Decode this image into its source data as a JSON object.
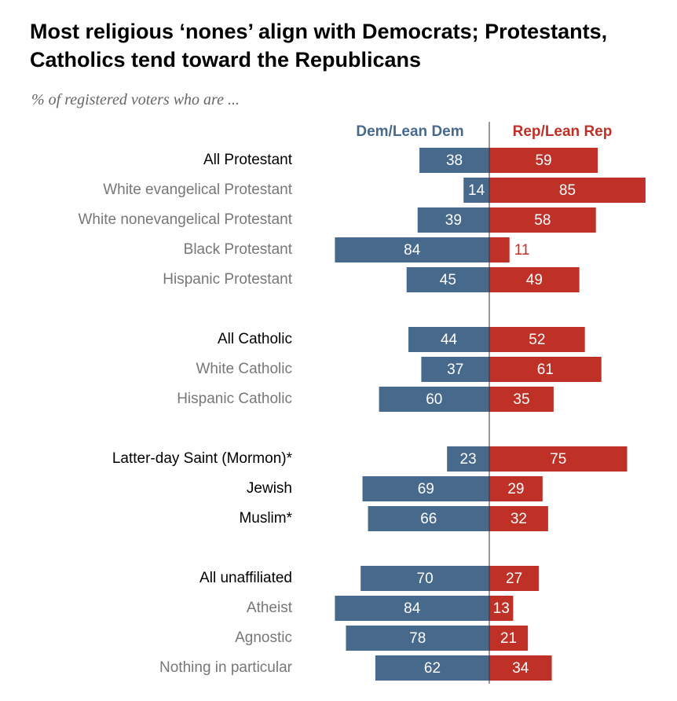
{
  "chart_data": {
    "type": "diverging-bar",
    "title": "Most religious ‘nones’ align with Democrats; Protestants, Catholics tend toward the Republicans",
    "subtitle": "% of registered voters who are ...",
    "categories": [
      "All Protestant",
      "White evangelical Protestant",
      "White nonevangelical Protestant",
      "Black Protestant",
      "Hispanic Protestant",
      "All Catholic",
      "White Catholic",
      "Hispanic Catholic",
      "Latter-day Saint (Mormon)*",
      "Jewish",
      "Muslim*",
      "All unaffiliated",
      "Atheist",
      "Agnostic",
      "Nothing in particular"
    ],
    "series": [
      {
        "name": "Dem/Lean Dem",
        "color": "#46698c",
        "values": [
          38,
          14,
          39,
          84,
          45,
          44,
          37,
          60,
          23,
          69,
          66,
          70,
          84,
          78,
          62
        ]
      },
      {
        "name": "Rep/Lean Rep",
        "color": "#bf3127",
        "values": [
          59,
          85,
          58,
          11,
          49,
          52,
          61,
          35,
          75,
          29,
          32,
          27,
          13,
          21,
          34
        ]
      }
    ]
  }
}
